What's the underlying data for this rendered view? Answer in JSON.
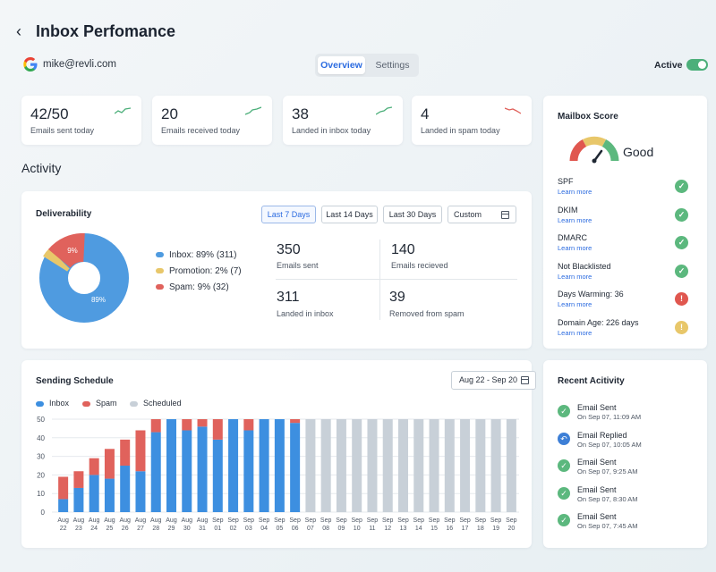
{
  "header": {
    "title": "Inbox Perfomance",
    "account_email": "mike@revli.com",
    "tabs": [
      {
        "label": "Overview",
        "selected": true
      },
      {
        "label": "Settings",
        "selected": false
      }
    ],
    "active_label": "Active",
    "active_on": true
  },
  "stats": [
    {
      "value": "42/50",
      "label": "Emails sent today",
      "trend": "up"
    },
    {
      "value": "20",
      "label": "Emails received today",
      "trend": "up"
    },
    {
      "value": "38",
      "label": "Landed in inbox today",
      "trend": "up"
    },
    {
      "value": "4",
      "label": "Landed in spam today",
      "trend": "down"
    }
  ],
  "activity_title": "Activity",
  "deliverability": {
    "title": "Deliverability",
    "ranges": [
      "Last 7 Days",
      "Last 14 Days",
      "Last 30 Days",
      "Custom"
    ],
    "selected_range": "Last 7 Days",
    "legend": [
      {
        "label": "Inbox: 89% (311)",
        "color": "#4f9be0"
      },
      {
        "label": "Promotion: 2% (7)",
        "color": "#e8c76a"
      },
      {
        "label": "Spam: 9% (32)",
        "color": "#e0625c"
      }
    ],
    "donut_labels": {
      "inbox": "89%",
      "spam": "9%"
    },
    "kpis": [
      {
        "value": "350",
        "label": "Emails sent"
      },
      {
        "value": "140",
        "label": "Emails recieved"
      },
      {
        "value": "311",
        "label": "Landed in inbox"
      },
      {
        "value": "39",
        "label": "Removed from spam"
      }
    ]
  },
  "mailbox_score": {
    "title": "Mailbox Score",
    "rating": "Good",
    "gauge_value": 0.62,
    "items": [
      {
        "name": "SPF",
        "link": "Learn more",
        "status": "ok"
      },
      {
        "name": "DKIM",
        "link": "Learn more",
        "status": "ok"
      },
      {
        "name": "DMARC",
        "link": "Learn more",
        "status": "ok"
      },
      {
        "name": "Not Blacklisted",
        "link": "Learn more",
        "status": "ok"
      },
      {
        "name": "Days Warming: 36",
        "link": "Learn more",
        "status": "error"
      },
      {
        "name": "Domain Age: 226 days",
        "link": "Learn more",
        "status": "warning"
      }
    ],
    "status_colors": {
      "ok": "#5cb87e",
      "error": "#e0574f",
      "warning": "#e8c76a"
    }
  },
  "sending_schedule": {
    "title": "Sending Schedule",
    "date_range": "Aug 22 - Sep 20",
    "legend": [
      {
        "label": "Inbox",
        "color": "#3d8fe0"
      },
      {
        "label": "Spam",
        "color": "#e0625c"
      },
      {
        "label": "Scheduled",
        "color": "#c8d0d8"
      }
    ]
  },
  "chart_data": {
    "type": "bar",
    "stacked": true,
    "categories": [
      [
        "Aug",
        "22"
      ],
      [
        "Aug",
        "23"
      ],
      [
        "Aug",
        "24"
      ],
      [
        "Aug",
        "25"
      ],
      [
        "Aug",
        "26"
      ],
      [
        "Aug",
        "27"
      ],
      [
        "Aug",
        "28"
      ],
      [
        "Aug",
        "29"
      ],
      [
        "Aug",
        "30"
      ],
      [
        "Aug",
        "31"
      ],
      [
        "Sep",
        "01"
      ],
      [
        "Sep",
        "02"
      ],
      [
        "Sep",
        "03"
      ],
      [
        "Sep",
        "04"
      ],
      [
        "Sep",
        "05"
      ],
      [
        "Sep",
        "06"
      ],
      [
        "Sep",
        "07"
      ],
      [
        "Sep",
        "08"
      ],
      [
        "Sep",
        "09"
      ],
      [
        "Sep",
        "10"
      ],
      [
        "Sep",
        "11"
      ],
      [
        "Sep",
        "12"
      ],
      [
        "Sep",
        "13"
      ],
      [
        "Sep",
        "14"
      ],
      [
        "Sep",
        "15"
      ],
      [
        "Sep",
        "16"
      ],
      [
        "Sep",
        "17"
      ],
      [
        "Sep",
        "18"
      ],
      [
        "Sep",
        "19"
      ],
      [
        "Sep",
        "20"
      ]
    ],
    "series": [
      {
        "name": "Inbox",
        "values": [
          7,
          13,
          20,
          18,
          25,
          22,
          43,
          50,
          44,
          46,
          39,
          50,
          44,
          50,
          50,
          48,
          0,
          0,
          0,
          0,
          0,
          0,
          0,
          0,
          0,
          0,
          0,
          0,
          0,
          0
        ]
      },
      {
        "name": "Spam",
        "values": [
          12,
          9,
          9,
          16,
          14,
          22,
          7,
          0,
          6,
          4,
          11,
          0,
          6,
          0,
          0,
          2,
          0,
          0,
          0,
          0,
          0,
          0,
          0,
          0,
          0,
          0,
          0,
          0,
          0,
          0
        ]
      },
      {
        "name": "Scheduled",
        "values": [
          0,
          0,
          0,
          0,
          0,
          0,
          0,
          0,
          0,
          0,
          0,
          0,
          0,
          0,
          0,
          0,
          50,
          50,
          50,
          50,
          50,
          50,
          50,
          50,
          50,
          50,
          50,
          50,
          50,
          50
        ]
      }
    ],
    "yticks": [
      "0",
      "10",
      "20",
      "30",
      "40",
      "50"
    ],
    "ylim": [
      0,
      50
    ],
    "grid": true,
    "legend_position": "top-left"
  },
  "recent_activity": {
    "title": "Recent Acitivity",
    "items": [
      {
        "title": "Email Sent",
        "time": "On Sep 07, 11:09 AM",
        "type": "sent"
      },
      {
        "title": "Email Replied",
        "time": "On Sep 07, 10:05 AM",
        "type": "replied"
      },
      {
        "title": "Email Sent",
        "time": "On Sep 07, 9:25 AM",
        "type": "sent"
      },
      {
        "title": "Email Sent",
        "time": "On Sep 07, 8:30 AM",
        "type": "sent"
      },
      {
        "title": "Email Sent",
        "time": "On Sep 07, 7:45 AM",
        "type": "sent"
      }
    ]
  }
}
